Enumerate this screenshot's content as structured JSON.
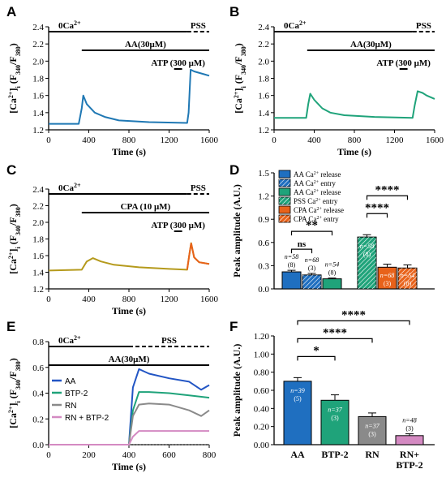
{
  "chart_data": [
    {
      "panel": "A",
      "type": "line",
      "x_range": [
        0,
        1600
      ],
      "ylim": [
        1.2,
        2.4
      ],
      "xticks": [
        "0",
        "400",
        "800",
        "1200",
        "1600"
      ],
      "yticks": [
        "1.2",
        "1.4",
        "1.6",
        "1.8",
        "2.0",
        "2.2",
        "2.4"
      ],
      "xlabel": "Time (s)",
      "ylabel": "[Ca2+]i (F340/F380)",
      "color": "#1f78b4",
      "bars": [
        {
          "label": "0Ca2+",
          "start": 0,
          "end": 1380,
          "style": "solid"
        },
        {
          "label": "PSS",
          "start": 1380,
          "end": 1600,
          "style": "dashed"
        },
        {
          "label": "AA(30μM)",
          "start": 330,
          "end": 1600,
          "style": "solid"
        },
        {
          "label": "ATP (300 μM)",
          "start": 1250,
          "end": 1330,
          "style": "solid"
        }
      ],
      "points": [
        [
          0,
          1.27
        ],
        [
          300,
          1.27
        ],
        [
          330,
          1.45
        ],
        [
          345,
          1.6
        ],
        [
          380,
          1.5
        ],
        [
          460,
          1.4
        ],
        [
          560,
          1.35
        ],
        [
          700,
          1.31
        ],
        [
          1000,
          1.29
        ],
        [
          1380,
          1.28
        ],
        [
          1395,
          1.4
        ],
        [
          1415,
          1.9
        ],
        [
          1450,
          1.88
        ],
        [
          1600,
          1.83
        ]
      ]
    },
    {
      "panel": "B",
      "type": "line",
      "x_range": [
        0,
        1600
      ],
      "ylim": [
        1.2,
        2.4
      ],
      "xticks": [
        "0",
        "400",
        "800",
        "1200",
        "1600"
      ],
      "yticks": [
        "1.2",
        "1.4",
        "1.6",
        "1.8",
        "2.0",
        "2.2",
        "2.4"
      ],
      "xlabel": "Time (s)",
      "ylabel": "[Ca2+]i (F340/F380)",
      "color": "#1fa37a",
      "bars": [
        {
          "label": "0Ca2+",
          "start": 0,
          "end": 1380,
          "style": "solid"
        },
        {
          "label": "PSS",
          "start": 1380,
          "end": 1600,
          "style": "dashed"
        },
        {
          "label": "AA(30μM)",
          "start": 330,
          "end": 1600,
          "style": "solid"
        },
        {
          "label": "ATP (300 μM)",
          "start": 1250,
          "end": 1330,
          "style": "solid"
        }
      ],
      "points": [
        [
          0,
          1.34
        ],
        [
          320,
          1.34
        ],
        [
          340,
          1.5
        ],
        [
          360,
          1.62
        ],
        [
          400,
          1.55
        ],
        [
          480,
          1.45
        ],
        [
          560,
          1.4
        ],
        [
          700,
          1.37
        ],
        [
          1000,
          1.35
        ],
        [
          1380,
          1.34
        ],
        [
          1400,
          1.48
        ],
        [
          1430,
          1.65
        ],
        [
          1480,
          1.63
        ],
        [
          1520,
          1.6
        ],
        [
          1600,
          1.56
        ]
      ]
    },
    {
      "panel": "C",
      "type": "line",
      "x_range": [
        0,
        1600
      ],
      "ylim": [
        1.2,
        2.4
      ],
      "xticks": [
        "0",
        "400",
        "800",
        "1200",
        "1600"
      ],
      "yticks": [
        "1.2",
        "1.4",
        "1.6",
        "1.8",
        "2.0",
        "2.2",
        "2.4"
      ],
      "xlabel": "Time (s)",
      "ylabel": "[Ca2+]i (F340/F380)",
      "color": "#b59a1c",
      "spike_color": "#e8621a",
      "bars": [
        {
          "label": "0Ca2+",
          "start": 0,
          "end": 1380,
          "style": "solid"
        },
        {
          "label": "PSS",
          "start": 1380,
          "end": 1600,
          "style": "dashed"
        },
        {
          "label": "CPA (10 μM)",
          "start": 330,
          "end": 1600,
          "style": "solid"
        },
        {
          "label": "ATP (300 μM)",
          "start": 1250,
          "end": 1330,
          "style": "solid"
        }
      ],
      "points": [
        [
          0,
          1.42
        ],
        [
          330,
          1.43
        ],
        [
          380,
          1.53
        ],
        [
          440,
          1.57
        ],
        [
          520,
          1.53
        ],
        [
          650,
          1.49
        ],
        [
          900,
          1.46
        ],
        [
          1200,
          1.44
        ],
        [
          1380,
          1.43
        ],
        [
          1400,
          1.6
        ],
        [
          1420,
          1.75
        ],
        [
          1450,
          1.58
        ],
        [
          1500,
          1.52
        ],
        [
          1600,
          1.5
        ]
      ]
    },
    {
      "panel": "D",
      "type": "bar",
      "ylabel": "Peak amplitude (A.U.)",
      "ylim": [
        0,
        1.5
      ],
      "yticks": [
        "0.0",
        "0.3",
        "0.6",
        "0.9",
        "1.2",
        "1.5"
      ],
      "legend": [
        {
          "label": "AA Ca2+ release",
          "color": "#1f6fc0",
          "hatch": false
        },
        {
          "label": "AA Ca2+ entry",
          "color": "#1f6fc0",
          "hatch": true
        },
        {
          "label": "AA Ca2+ release",
          "color": "#1fa37a",
          "hatch": false
        },
        {
          "label": "PSS Ca2+ entry",
          "color": "#1fa37a",
          "hatch": true
        },
        {
          "label": "CPA Ca2+ release",
          "color": "#e8621a",
          "hatch": false
        },
        {
          "label": "CPA Ca2+ entry",
          "color": "#e8621a",
          "hatch": true
        }
      ],
      "values": [
        0.22,
        0.18,
        0.13,
        0.67,
        0.28,
        0.27
      ],
      "errors": [
        0.02,
        0.02,
        0.01,
        0.03,
        0.04,
        0.04
      ],
      "n_labels": [
        "n=58 (8)",
        "n=68 (3)",
        "n=54 (8)",
        "n=58 (8)",
        "n=68 (3)",
        "n=54 (8)"
      ],
      "significance": [
        {
          "from": 0,
          "to": 1,
          "text": "ns"
        },
        {
          "from": 0,
          "to": 2,
          "text": "**"
        },
        {
          "from": 3,
          "to": 4,
          "text": "****"
        },
        {
          "from": 3,
          "to": 5,
          "text": "****"
        }
      ]
    },
    {
      "panel": "E",
      "type": "line",
      "x_range": [
        0,
        800
      ],
      "ylim": [
        0,
        0.9
      ],
      "xticks": [
        "0",
        "200",
        "400",
        "600",
        "800"
      ],
      "yticks": [
        "0.0",
        "0.2",
        "0.4",
        "0.6",
        "0.8"
      ],
      "xlabel": "Time (s)",
      "ylabel": "[Ca2+]i (F340/F380)",
      "bars": [
        {
          "label": "0Ca2+",
          "start": 0,
          "end": 400,
          "style": "solid"
        },
        {
          "label": "PSS",
          "start": 400,
          "end": 800,
          "style": "dashed"
        },
        {
          "label": "AA(30μM)",
          "start": 0,
          "end": 800,
          "style": "solid"
        }
      ],
      "series": [
        {
          "name": "AA",
          "color": "#2255c4",
          "points": [
            [
              0,
              0
            ],
            [
              400,
              0
            ],
            [
              420,
              0.5
            ],
            [
              450,
              0.66
            ],
            [
              500,
              0.62
            ],
            [
              600,
              0.58
            ],
            [
              700,
              0.55
            ],
            [
              760,
              0.48
            ],
            [
              800,
              0.52
            ]
          ]
        },
        {
          "name": "BTP-2",
          "color": "#1fa37a",
          "points": [
            [
              0,
              0
            ],
            [
              400,
              0
            ],
            [
              420,
              0.3
            ],
            [
              450,
              0.46
            ],
            [
              500,
              0.46
            ],
            [
              600,
              0.45
            ],
            [
              700,
              0.43
            ],
            [
              800,
              0.41
            ]
          ]
        },
        {
          "name": "RN",
          "color": "#8a8a8a",
          "points": [
            [
              0,
              0
            ],
            [
              400,
              0
            ],
            [
              420,
              0.25
            ],
            [
              450,
              0.35
            ],
            [
              500,
              0.36
            ],
            [
              600,
              0.35
            ],
            [
              700,
              0.3
            ],
            [
              760,
              0.25
            ],
            [
              800,
              0.3
            ]
          ]
        },
        {
          "name": "RN + BTP-2",
          "color": "#d48ac2",
          "points": [
            [
              0,
              0
            ],
            [
              400,
              0
            ],
            [
              420,
              0.07
            ],
            [
              450,
              0.12
            ],
            [
              600,
              0.12
            ],
            [
              800,
              0.12
            ]
          ]
        }
      ]
    },
    {
      "panel": "F",
      "type": "bar",
      "ylabel": "Peak amplitude (A.U.)",
      "ylim": [
        0,
        1.2
      ],
      "yticks": [
        "0.00",
        "0.20",
        "0.40",
        "0.60",
        "0.80",
        "1.00",
        "1.20"
      ],
      "categories": [
        "AA",
        "BTP-2",
        "RN",
        "RN+\nBTP-2"
      ],
      "colors": [
        "#1f6fc0",
        "#1fa37a",
        "#8a8a8a",
        "#d48ac2"
      ],
      "values": [
        0.7,
        0.49,
        0.31,
        0.1
      ],
      "errors": [
        0.04,
        0.06,
        0.04,
        0.02
      ],
      "n_labels": [
        "n=39 (5)",
        "n=37 (3)",
        "n=37 (3)",
        "n=48 (3)"
      ],
      "significance": [
        {
          "from": 0,
          "to": 1,
          "text": "*"
        },
        {
          "from": 0,
          "to": 2,
          "text": "****"
        },
        {
          "from": 0,
          "to": 3,
          "text": "****"
        }
      ]
    }
  ]
}
